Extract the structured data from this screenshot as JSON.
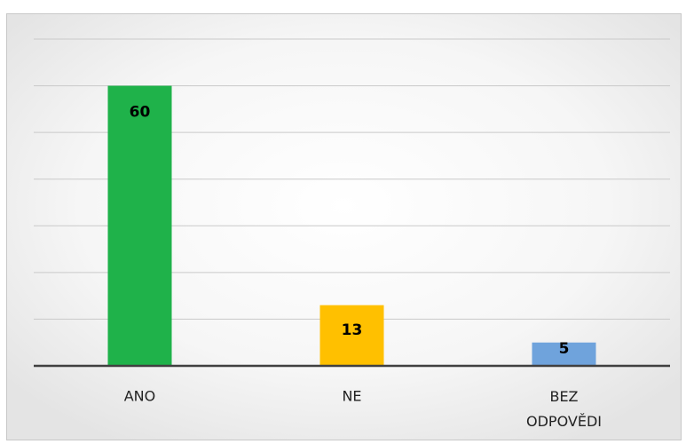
{
  "chart_data": {
    "type": "bar",
    "categories": [
      "ANO",
      "NE",
      "BEZ ODPOVĚDI"
    ],
    "values": [
      60,
      13,
      5
    ],
    "colors": [
      "#1fb24a",
      "#ffc000",
      "#6fa3dc"
    ],
    "ylim": [
      0,
      70
    ],
    "yticks": [
      0,
      10,
      20,
      30,
      40,
      50,
      60,
      70
    ],
    "grid": true
  }
}
